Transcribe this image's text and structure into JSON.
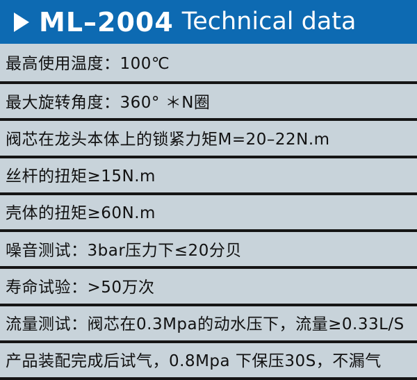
{
  "header": {
    "model": "ML–2004",
    "subtitle": "Technical data",
    "bullet_icon": "right-triangle"
  },
  "colors": {
    "header_bg": "#0d6ab2",
    "header_text": "#ffffff",
    "body_bg": "#c8d3da",
    "row_rule": "#151515",
    "row_text": "#111111"
  },
  "rows": [
    "最高使用温度：100℃",
    "最大旋转角度：360° ＊N圈",
    "阀芯在龙头本体上的锁紧力矩M=20–22N.m",
    "丝杆的扭矩≥15N.m",
    "壳体的扭矩≥60N.m",
    "噪音测试：3bar压力下≤20分贝",
    "寿命试验：>50万次",
    "流量测试：阀芯在0.3Mpa的动水压下，流量≥0.33L/S",
    "产品装配完成后试气，0.8Mpa 下保压30S，不漏气"
  ]
}
